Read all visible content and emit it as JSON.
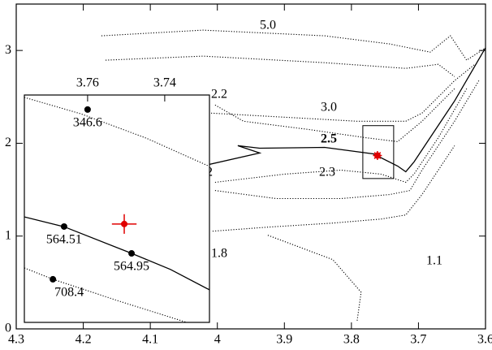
{
  "chart_data": {
    "type": "line",
    "xlim": [
      4.3,
      3.6
    ],
    "ylim": [
      0,
      3.5
    ],
    "xticks": [
      4.3,
      4.2,
      4.1,
      4,
      3.9,
      3.8,
      3.7,
      3.6
    ],
    "yticks": [
      0,
      1,
      2,
      3
    ],
    "series": [
      {
        "name": "5.0",
        "style": "dotted",
        "x": [
          4.1729,
          4.0215,
          3.8399,
          3.7431,
          3.6826,
          3.6523,
          3.6281,
          3.6002
        ],
        "y": [
          3.158,
          3.219,
          3.158,
          3.07,
          2.982,
          3.158,
          2.895,
          3.026
        ]
      },
      {
        "style": "dotted",
        "x": [
          4.1668,
          4.0215,
          3.8399,
          3.7189,
          3.6704,
          3.6462
        ],
        "y": [
          2.895,
          2.939,
          2.868,
          2.807,
          2.851,
          2.719
        ]
      },
      {
        "name": "3.0",
        "style": "dotted",
        "x": [
          4.0094,
          3.9005,
          3.7915,
          3.7189,
          3.6947,
          3.6704,
          3.6462,
          3.616
        ],
        "y": [
          2.325,
          2.281,
          2.237,
          2.237,
          2.325,
          2.5,
          2.675,
          2.851
        ]
      },
      {
        "name": "2.5",
        "style": "solid",
        "x": [
          4.0336,
          3.9368,
          3.9695,
          3.9368,
          3.8399,
          3.7673,
          3.731,
          3.7189,
          3.7067,
          3.6826,
          3.6462,
          3.6002
        ],
        "y": [
          1.737,
          1.895,
          1.974,
          1.947,
          1.956,
          1.886,
          1.754,
          1.693,
          1.798,
          2.061,
          2.456,
          3.026
        ]
      },
      {
        "name": "2.3",
        "style": "dotted",
        "x": [
          4.0034,
          3.9005,
          3.8157,
          3.7552,
          3.7189,
          3.7067,
          3.6704,
          3.6281
        ],
        "y": [
          1.579,
          1.667,
          1.711,
          1.667,
          1.579,
          1.667,
          2.061,
          2.588
        ]
      },
      {
        "name": "2.2",
        "style": "dotted",
        "x": [
          4.0034,
          3.961,
          3.8642,
          3.7794,
          3.731,
          3.6947,
          3.6462
        ],
        "y": [
          2.412,
          2.237,
          2.149,
          2.061,
          2.018,
          2.237,
          2.588
        ]
      },
      {
        "name": "2",
        "style": "dotted",
        "x": [
          4.0034,
          3.9126,
          3.8157,
          3.7431,
          3.7128,
          3.6947,
          3.6462,
          3.6099
        ],
        "y": [
          1.491,
          1.404,
          1.404,
          1.447,
          1.491,
          1.711,
          2.237,
          2.675
        ]
      },
      {
        "name": "1.8",
        "style": "dotted",
        "x": [
          4.007,
          3.9247,
          3.8278,
          3.7552,
          3.7189,
          3.6947,
          3.6462
        ],
        "y": [
          1.053,
          1.096,
          1.14,
          1.184,
          1.228,
          1.447,
          1.974
        ]
      },
      {
        "name": "1.1",
        "style": "dotted",
        "x": [
          3.9247,
          3.8278,
          3.7855,
          3.7915
        ],
        "y": [
          1.009,
          0.746,
          0.395,
          0.088
        ]
      }
    ],
    "points": [
      {
        "x": 3.7612,
        "y": 1.868,
        "color": "#e00000"
      }
    ],
    "box": {
      "xlim": [
        3.783,
        3.737
      ],
      "ylim": [
        1.62,
        2.19
      ]
    },
    "inset": {
      "type": "line",
      "xlim": [
        3.7764,
        3.7284
      ],
      "ylim": [
        1.62,
        2.2
      ],
      "xticks": [
        3.76,
        3.74
      ],
      "series": [
        {
          "style": "dotted",
          "x": [
            3.7764,
            3.7617,
            3.7448,
            3.7284
          ],
          "y": [
            2.194,
            2.152,
            2.09,
            2.018
          ]
        },
        {
          "style": "solid",
          "x": [
            3.7764,
            3.7661,
            3.7486,
            3.7385,
            3.7284
          ],
          "y": [
            1.889,
            1.864,
            1.796,
            1.755,
            1.703
          ]
        },
        {
          "style": "dotted",
          "x": [
            3.7764,
            3.769,
            3.7511,
            3.7343
          ],
          "y": [
            1.759,
            1.73,
            1.672,
            1.62
          ]
        }
      ],
      "points": [
        {
          "x": 3.76,
          "y": 2.163,
          "label": "346.6",
          "color": "#000000"
        },
        {
          "x": 3.7661,
          "y": 1.8645,
          "label": "564.51",
          "color": "#000000"
        },
        {
          "x": 3.7486,
          "y": 1.796,
          "label": "564.95",
          "color": "#000000"
        },
        {
          "x": 3.769,
          "y": 1.73,
          "label": "708.4",
          "color": "#000000"
        },
        {
          "x": 3.7505,
          "y": 1.871,
          "xerr": 0.0032,
          "yerr": 0.025,
          "color": "#e00000"
        }
      ]
    }
  }
}
